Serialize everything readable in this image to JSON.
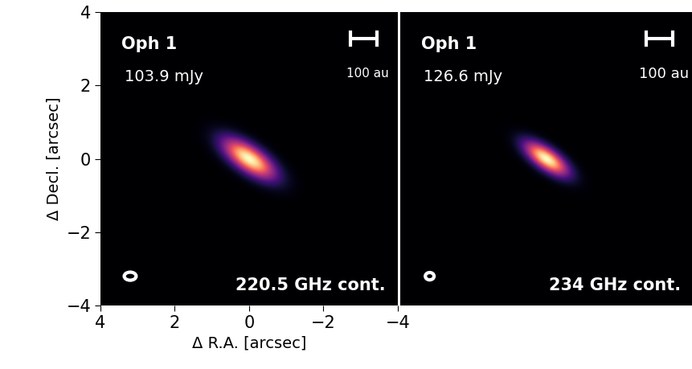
{
  "chart_data": [
    {
      "type": "image",
      "title": "Oph 1",
      "flux_label": "103.9 mJy",
      "band_label": "220.5 GHz cont.",
      "xlabel": "Δ R.A. [arcsec]",
      "ylabel": "Δ Decl. [arcsec]",
      "xlim": [
        4,
        -4
      ],
      "ylim": [
        -4,
        4
      ],
      "xticks": [
        4,
        2,
        0,
        {
          "value": -2,
          "label": "−2"
        },
        {
          "value": -4,
          "label": "−4"
        }
      ],
      "yticks": [
        {
          "value": -4,
          "label": "−4"
        },
        {
          "value": -2,
          "label": "−2"
        },
        0,
        2,
        4
      ],
      "tick_labels": true,
      "color": "magma",
      "source": {
        "major_fwhm_arcsec": 1.3,
        "minor_fwhm_arcsec": 0.55,
        "pa_deg": 55
      },
      "beam": {
        "major_arcsec": 0.32,
        "minor_arcsec": 0.22,
        "pa_deg": 90
      },
      "scalebar": {
        "label": "100 au",
        "length_arcsec": 0.72
      }
    },
    {
      "type": "image",
      "title": "Oph 1",
      "flux_label": "126.6 mJy",
      "band_label": "234 GHz cont.",
      "xlim": [
        4,
        -4
      ],
      "ylim": [
        -4,
        4
      ],
      "xticks": [
        4,
        2,
        0,
        {
          "value": -2,
          "label": "−2"
        },
        {
          "value": -4,
          "label": "−4"
        }
      ],
      "yticks": [
        {
          "value": -4,
          "label": "−4"
        },
        {
          "value": -2,
          "label": "−2"
        },
        0,
        2,
        4
      ],
      "tick_labels": false,
      "color": "magma",
      "source": {
        "major_fwhm_arcsec": 1.1,
        "minor_fwhm_arcsec": 0.45,
        "pa_deg": 55
      },
      "beam": {
        "major_arcsec": 0.24,
        "minor_arcsec": 0.2,
        "pa_deg": 90
      },
      "scalebar": {
        "label": "100 au",
        "length_arcsec": 0.72
      }
    }
  ]
}
